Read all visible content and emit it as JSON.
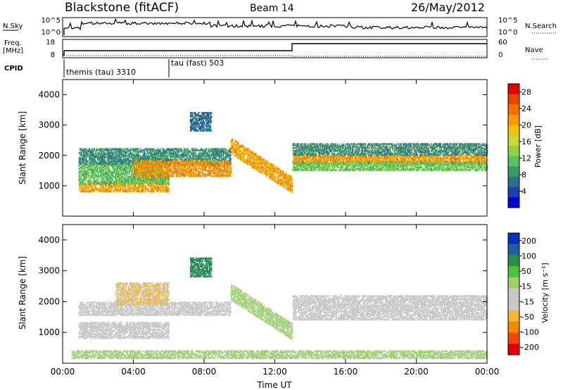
{
  "header": {
    "station": "Blackstone (fitACF)",
    "beam": "Beam 14",
    "date": "26/May/2012"
  },
  "summary": {
    "nsky_label": "N.Sky",
    "nsearch_label": "N.Search",
    "nsky_ticks": [
      "10^5",
      "10^0"
    ],
    "nsearch_ticks": [
      "10^5",
      "10^0"
    ],
    "freq_label_1": "Freq.",
    "freq_label_2": "[MHz]",
    "freq_ticks": [
      "18",
      "8"
    ],
    "nave_label": "Nave",
    "nave_ticks": [
      "60",
      "0"
    ],
    "cpid_label": "CPID",
    "cpid_segments": [
      {
        "name": "themis (tau) 3310",
        "start_hour": 0
      },
      {
        "name": "tau (fast) 503",
        "start_hour": 6
      }
    ]
  },
  "chart_data": [
    {
      "type": "heatmap",
      "name": "Power",
      "xlabel": "Time UT",
      "ylabel": "Slant Range [km]",
      "xlim": [
        0,
        24
      ],
      "ylim": [
        0,
        4500
      ],
      "xticks": [
        "00:00",
        "04:00",
        "08:00",
        "12:00",
        "16:00",
        "20:00",
        "00:00"
      ],
      "yticks": [
        1000,
        2000,
        3000,
        4000
      ],
      "colorbar_label": "Power [dB]",
      "colorbar_ticks": [
        4,
        8,
        12,
        16,
        20,
        24,
        28
      ],
      "colorbar_range": [
        0,
        30
      ],
      "colors": [
        "#0000d8",
        "#1e3fb0",
        "#2e6f8a",
        "#3a9a66",
        "#5cc25a",
        "#8ed24a",
        "#c8d83a",
        "#f2c200",
        "#f59a00",
        "#f27000",
        "#ea4300",
        "#e00000"
      ],
      "scatter_regions": [
        {
          "t_start": 0.9,
          "t_end": 6.0,
          "r_start": 800,
          "r_end": 1050,
          "r_end_end": 1300,
          "power": 21
        },
        {
          "t_start": 0.9,
          "t_end": 6.0,
          "r_start": 1050,
          "r_end": 1700,
          "r_end_end": 1900,
          "power": 11
        },
        {
          "t_start": 0.9,
          "t_end": 9.5,
          "r_start": 1700,
          "r_end": 2200,
          "power": 8
        },
        {
          "t_start": 4.0,
          "t_end": 9.5,
          "r_start": 1300,
          "r_end": 1800,
          "power": 22
        },
        {
          "t_start": 9.5,
          "t_end": 13.0,
          "r_start": 2300,
          "r_end": 1000,
          "power": 21
        },
        {
          "t_start": 13.0,
          "t_end": 24.0,
          "r_start": 1700,
          "r_end": 2000,
          "power": 22
        },
        {
          "t_start": 13.0,
          "t_end": 24.0,
          "r_start": 1500,
          "r_end": 1800,
          "power": 12
        },
        {
          "t_start": 13.0,
          "t_end": 24.0,
          "r_start": 2000,
          "r_end": 2400,
          "power": 8
        },
        {
          "t_start": 7.2,
          "t_end": 8.4,
          "r_start": 2800,
          "r_end": 3400,
          "power": 6
        }
      ]
    },
    {
      "type": "heatmap",
      "name": "Velocity",
      "xlabel": "Time UT",
      "ylabel": "Slant Range [km]",
      "xlim": [
        0,
        24
      ],
      "ylim": [
        0,
        4500
      ],
      "xticks": [
        "00:00",
        "04:00",
        "08:00",
        "12:00",
        "16:00",
        "20:00",
        "00:00"
      ],
      "yticks": [
        1000,
        2000,
        3000,
        4000
      ],
      "colorbar_label": "Velocity [m s⁻¹]",
      "colorbar_ticks": [
        200,
        100,
        50,
        15,
        -15,
        -50,
        -100,
        -200
      ],
      "colorbar_range": [
        -250,
        250
      ],
      "colors": [
        "#e00000",
        "#f04a00",
        "#f08a00",
        "#f5b630",
        "#c8c8c8",
        "#c8c8c8",
        "#9ad36a",
        "#4cc23a",
        "#2a8f4a",
        "#1f5fa0",
        "#0a2fc0"
      ],
      "scatter_regions": [
        {
          "t_start": 0.9,
          "t_end": 6.0,
          "r_start": 800,
          "r_end": 1300,
          "velocity": 0
        },
        {
          "t_start": 0.9,
          "t_end": 9.5,
          "r_start": 1550,
          "r_end": 2000,
          "velocity": 0
        },
        {
          "t_start": 3.0,
          "t_end": 6.0,
          "r_start": 1900,
          "r_end": 2600,
          "velocity": -70
        },
        {
          "t_start": 7.2,
          "t_end": 8.4,
          "r_start": 2800,
          "r_end": 3400,
          "velocity": 150
        },
        {
          "t_start": 9.5,
          "t_end": 13.0,
          "r_start": 2300,
          "r_end": 1000,
          "velocity": 30
        },
        {
          "t_start": 13.0,
          "t_end": 24.0,
          "r_start": 1400,
          "r_end": 2200,
          "velocity": 0
        },
        {
          "t_start": 0.5,
          "t_end": 24.0,
          "r_start": 150,
          "r_end": 400,
          "velocity": 30
        }
      ]
    }
  ]
}
